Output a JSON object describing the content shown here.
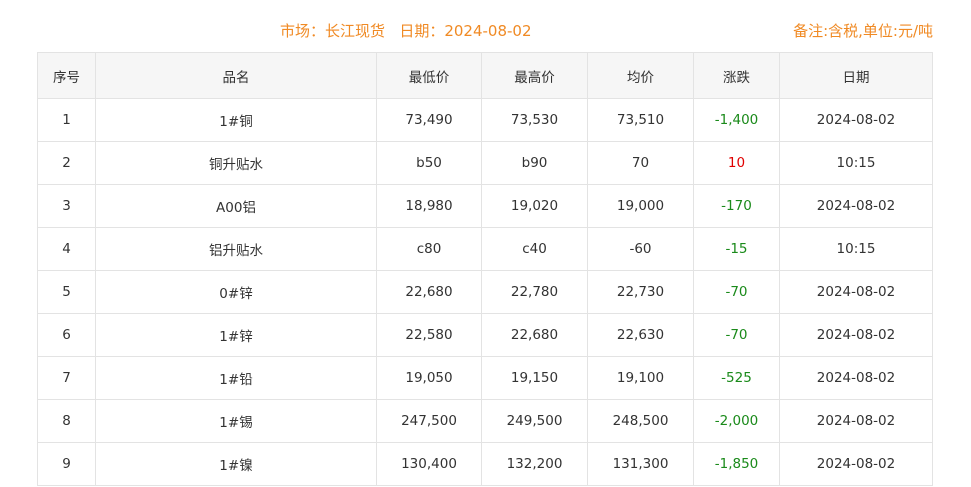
{
  "header": {
    "market_label": "市场：长江现货",
    "date_label": "日期：2024-08-02",
    "note": "备注:含税,单位:元/吨"
  },
  "colors": {
    "accent": "#f08a24",
    "down": "#1a8a1a",
    "up": "#e00000"
  },
  "table": {
    "columns": [
      "序号",
      "品名",
      "最低价",
      "最高价",
      "均价",
      "涨跌",
      "日期"
    ],
    "rows": [
      {
        "no": "1",
        "name": "1#铜",
        "low": "73,490",
        "high": "73,530",
        "avg": "73,510",
        "change": "-1,400",
        "dir": "down",
        "date": "2024-08-02"
      },
      {
        "no": "2",
        "name": "铜升贴水",
        "low": "b50",
        "high": "b90",
        "avg": "70",
        "change": "10",
        "dir": "up",
        "date": "10:15"
      },
      {
        "no": "3",
        "name": "A00铝",
        "low": "18,980",
        "high": "19,020",
        "avg": "19,000",
        "change": "-170",
        "dir": "down",
        "date": "2024-08-02"
      },
      {
        "no": "4",
        "name": "铝升贴水",
        "low": "c80",
        "high": "c40",
        "avg": "-60",
        "change": "-15",
        "dir": "down",
        "date": "10:15"
      },
      {
        "no": "5",
        "name": "0#锌",
        "low": "22,680",
        "high": "22,780",
        "avg": "22,730",
        "change": "-70",
        "dir": "down",
        "date": "2024-08-02"
      },
      {
        "no": "6",
        "name": "1#锌",
        "low": "22,580",
        "high": "22,680",
        "avg": "22,630",
        "change": "-70",
        "dir": "down",
        "date": "2024-08-02"
      },
      {
        "no": "7",
        "name": "1#铅",
        "low": "19,050",
        "high": "19,150",
        "avg": "19,100",
        "change": "-525",
        "dir": "down",
        "date": "2024-08-02"
      },
      {
        "no": "8",
        "name": "1#锡",
        "low": "247,500",
        "high": "249,500",
        "avg": "248,500",
        "change": "-2,000",
        "dir": "down",
        "date": "2024-08-02"
      },
      {
        "no": "9",
        "name": "1#镍",
        "low": "130,400",
        "high": "132,200",
        "avg": "131,300",
        "change": "-1,850",
        "dir": "down",
        "date": "2024-08-02"
      }
    ]
  }
}
